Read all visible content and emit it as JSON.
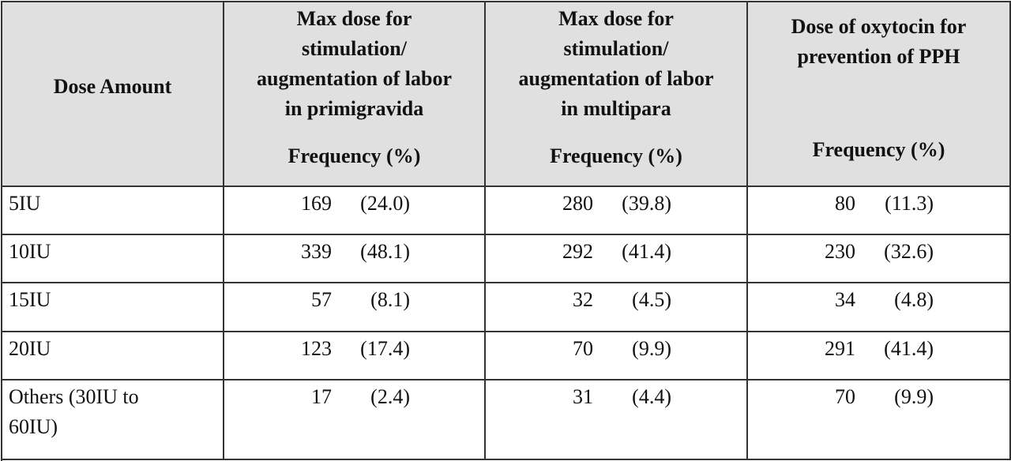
{
  "table": {
    "header": [
      {
        "title_lines": [
          "Dose Amount"
        ]
      },
      {
        "title_lines": [
          "Max dose for",
          "stimulation/",
          "augmentation of labor",
          "in primigravida"
        ],
        "subtitle": "Frequency (%)"
      },
      {
        "title_lines": [
          "Max dose for",
          "stimulation/",
          "augmentation of labor",
          "in multipara"
        ],
        "subtitle": "Frequency (%)"
      },
      {
        "title_lines": [
          "Dose of oxytocin for",
          "prevention of PPH"
        ],
        "subtitle": "Frequency (%)"
      }
    ],
    "rows": [
      [
        "5IU",
        [
          "169",
          "(24.0)"
        ],
        [
          "280",
          "(39.8)"
        ],
        [
          "80",
          "(11.3)"
        ]
      ],
      [
        "10IU",
        [
          "339",
          "(48.1)"
        ],
        [
          "292",
          "(41.4)"
        ],
        [
          "230",
          "(32.6)"
        ]
      ],
      [
        "15IU",
        [
          "57",
          "(8.1)"
        ],
        [
          "32",
          "(4.5)"
        ],
        [
          "34",
          "(4.8)"
        ]
      ],
      [
        "20IU",
        [
          "123",
          "(17.4)"
        ],
        [
          "70",
          "(9.9)"
        ],
        [
          "291",
          "(41.4)"
        ]
      ],
      [
        "Others (30IU to 60IU)",
        [
          "17",
          "(2.4)"
        ],
        [
          "31",
          "(4.4)"
        ],
        [
          "70",
          "(9.9)"
        ]
      ]
    ]
  }
}
